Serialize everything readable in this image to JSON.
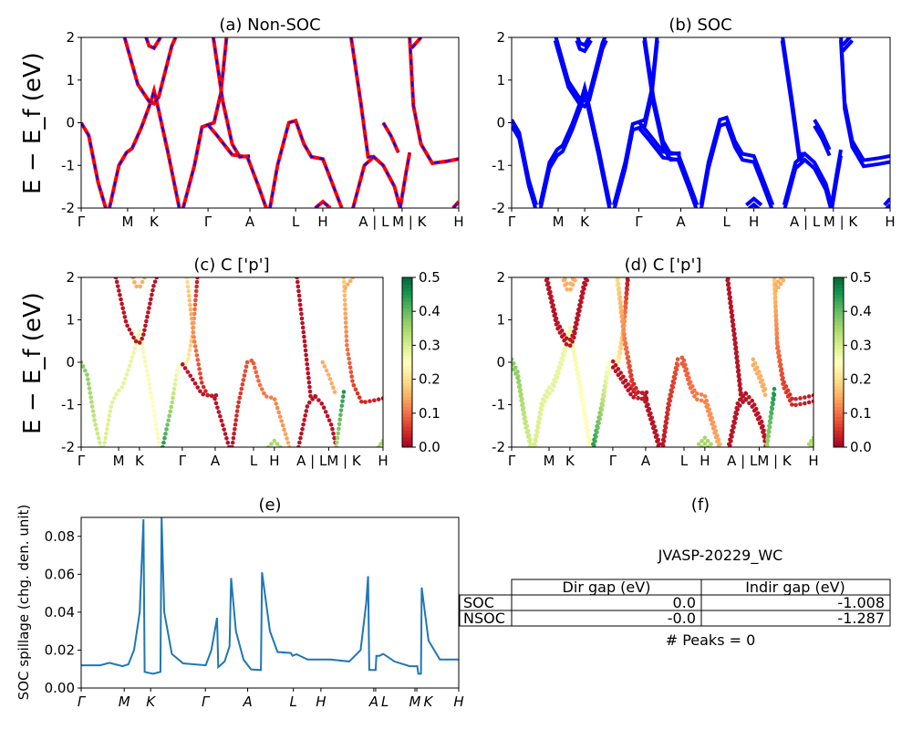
{
  "chart_data": [
    {
      "id": "a",
      "type": "line",
      "title": "(a) Non-SOC",
      "ylabel": "E − E_f (eV)",
      "ylim": [
        -2,
        2
      ],
      "yticks": [
        -2,
        -1,
        0,
        1,
        2
      ],
      "style": "red solid with blue dashes",
      "colors": [
        "#ff0000",
        "#0000ff"
      ]
    },
    {
      "id": "b",
      "type": "line",
      "title": "(b) SOC",
      "ylim": [
        -2,
        2
      ],
      "yticks": [
        -2,
        -1,
        0,
        1,
        2
      ],
      "colors": [
        "#0000ff"
      ]
    },
    {
      "id": "c",
      "type": "scatter",
      "title": "(c)  C ['p']",
      "ylabel": "E − E_f (eV)",
      "ylim": [
        -2,
        2
      ],
      "yticks": [
        -2,
        -1,
        0,
        1,
        2
      ],
      "colorbar": {
        "colormap": "RdYlGn",
        "range": [
          0,
          0.5
        ],
        "ticks": [
          "0.0",
          "0.1",
          "0.2",
          "0.3",
          "0.4",
          "0.5"
        ]
      }
    },
    {
      "id": "d",
      "type": "scatter",
      "title": "(d) C ['p']",
      "ylim": [
        -2,
        2
      ],
      "yticks": [
        -2,
        -1,
        0,
        1,
        2
      ],
      "colorbar": {
        "colormap": "RdYlGn",
        "range": [
          0,
          0.5
        ],
        "ticks": [
          "0.0",
          "0.1",
          "0.2",
          "0.3",
          "0.4",
          "0.5"
        ]
      }
    },
    {
      "id": "e",
      "type": "line",
      "title": "(e)",
      "ylabel": "SOC spillage (chg. den. unit)",
      "ylim": [
        0,
        0.09
      ],
      "yticks": [
        "0.00",
        "0.02",
        "0.04",
        "0.06",
        "0.08"
      ],
      "color": "#1f77b4",
      "xticks": [
        {
          "label": "Γ",
          "k": 0
        },
        {
          "label": "M",
          "k": 0.114
        },
        {
          "label": "K",
          "k": 0.184
        },
        {
          "label": "Γ",
          "k": 0.329
        },
        {
          "label": "A",
          "k": 0.441
        },
        {
          "label": "L",
          "k": 0.562
        },
        {
          "label": "H",
          "k": 0.635
        },
        {
          "label": "A",
          "k": 0.775
        },
        {
          "label": "L",
          "k": 0.78
        },
        {
          "label": "M",
          "k": 0.884
        },
        {
          "label": "K",
          "k": 0.889
        },
        {
          "label": "H",
          "k": 1
        }
      ],
      "points": [
        [
          0,
          0.012
        ],
        [
          0.05,
          0.012
        ],
        [
          0.075,
          0.0133
        ],
        [
          0.11,
          0.0115
        ],
        [
          0.125,
          0.0125
        ],
        [
          0.14,
          0.02
        ],
        [
          0.155,
          0.04
        ],
        [
          0.165,
          0.089
        ],
        [
          0.168,
          0.0085
        ],
        [
          0.19,
          0.0075
        ],
        [
          0.21,
          0.0085
        ],
        [
          0.213,
          0.09
        ],
        [
          0.22,
          0.04
        ],
        [
          0.24,
          0.018
        ],
        [
          0.27,
          0.013
        ],
        [
          0.33,
          0.012
        ],
        [
          0.345,
          0.02
        ],
        [
          0.36,
          0.037
        ],
        [
          0.363,
          0.011
        ],
        [
          0.38,
          0.014
        ],
        [
          0.393,
          0.022
        ],
        [
          0.397,
          0.058
        ],
        [
          0.41,
          0.03
        ],
        [
          0.43,
          0.015
        ],
        [
          0.45,
          0.0098
        ],
        [
          0.476,
          0.0095
        ],
        [
          0.479,
          0.061
        ],
        [
          0.5,
          0.03
        ],
        [
          0.52,
          0.019
        ],
        [
          0.555,
          0.0185
        ],
        [
          0.56,
          0.017
        ],
        [
          0.57,
          0.0178
        ],
        [
          0.6,
          0.015
        ],
        [
          0.66,
          0.015
        ],
        [
          0.71,
          0.014
        ],
        [
          0.74,
          0.02
        ],
        [
          0.755,
          0.045
        ],
        [
          0.76,
          0.059
        ],
        [
          0.763,
          0.0095
        ],
        [
          0.78,
          0.0095
        ],
        [
          0.782,
          0.017
        ],
        [
          0.79,
          0.017
        ],
        [
          0.8,
          0.018
        ],
        [
          0.83,
          0.014
        ],
        [
          0.87,
          0.0115
        ],
        [
          0.89,
          0.0115
        ],
        [
          0.893,
          0.0075
        ],
        [
          0.9,
          0.0075
        ],
        [
          0.902,
          0.053
        ],
        [
          0.92,
          0.025
        ],
        [
          0.95,
          0.015
        ],
        [
          1,
          0.015
        ]
      ]
    }
  ],
  "kpath": {
    "ab_ticks": [
      {
        "label": "Γ",
        "k": 0
      },
      {
        "label": "M",
        "k": 0.123
      },
      {
        "label": "K",
        "k": 0.193
      },
      {
        "label": "Γ",
        "k": 0.336
      },
      {
        "label": "A",
        "k": 0.447
      },
      {
        "label": "L",
        "k": 0.568
      },
      {
        "label": "H",
        "k": 0.64
      },
      {
        "label": "A | L",
        "k": 0.775
      },
      {
        "label": "M | K",
        "k": 0.85
      },
      {
        "label": "H",
        "k": 1
      }
    ],
    "cd_ticks": [
      {
        "label": "Γ",
        "k": 0
      },
      {
        "label": "M",
        "k": 0.124
      },
      {
        "label": "K",
        "k": 0.193
      },
      {
        "label": "Γ",
        "k": 0.335
      },
      {
        "label": "A",
        "k": 0.444
      },
      {
        "label": "L",
        "k": 0.571
      },
      {
        "label": "H",
        "k": 0.64
      },
      {
        "label": "A | LM | K",
        "k": 0.82
      },
      {
        "label": "H",
        "k": 1
      }
    ]
  },
  "bands": [
    {
      "pts": [
        [
          0,
          0
        ],
        [
          0.02,
          -0.3
        ],
        [
          0.045,
          -1.4
        ],
        [
          0.065,
          -2
        ]
      ],
      "w": [
        0.38,
        0.3
      ]
    },
    {
      "pts": [
        [
          0.075,
          -2
        ],
        [
          0.1,
          -1
        ],
        [
          0.12,
          -0.7
        ],
        [
          0.135,
          -0.6
        ],
        [
          0.16,
          -0.1
        ],
        [
          0.185,
          0.5
        ],
        [
          0.193,
          0.75
        ],
        [
          0.2,
          0.5
        ],
        [
          0.23,
          -0.7
        ],
        [
          0.26,
          -2
        ]
      ],
      "w": [
        0.3,
        0.24
      ]
    },
    {
      "pts": [
        [
          0.115,
          2
        ],
        [
          0.15,
          0.9
        ],
        [
          0.18,
          0.5
        ],
        [
          0.193,
          0.45
        ],
        [
          0.205,
          0.6
        ],
        [
          0.24,
          1.8
        ],
        [
          0.25,
          2
        ]
      ],
      "w": [
        0.02,
        0.02
      ]
    },
    {
      "pts": [
        [
          0.172,
          2
        ],
        [
          0.18,
          1.8
        ],
        [
          0.193,
          1.75
        ],
        [
          0.21,
          2
        ]
      ],
      "w": [
        0.15,
        0.15
      ]
    },
    {
      "pts": [
        [
          0.27,
          -2
        ],
        [
          0.3,
          -1
        ],
        [
          0.32,
          -0.1
        ],
        [
          0.336,
          -0.05
        ],
        [
          0.352,
          0
        ],
        [
          0.37,
          0.7
        ],
        [
          0.385,
          2
        ]
      ],
      "w": [
        0.45,
        0.02
      ]
    },
    {
      "pts": [
        [
          0.336,
          -0.05
        ],
        [
          0.36,
          -0.3
        ],
        [
          0.4,
          -0.75
        ],
        [
          0.44,
          -0.8
        ],
        [
          0.47,
          -1.5
        ],
        [
          0.49,
          -2
        ]
      ],
      "w": [
        0.02,
        0.02
      ]
    },
    {
      "pts": [
        [
          0.35,
          2
        ],
        [
          0.375,
          0.5
        ],
        [
          0.4,
          -0.5
        ],
        [
          0.42,
          -0.8
        ],
        [
          0.447,
          -0.78
        ]
      ],
      "w": [
        0.2,
        0.02
      ]
    },
    {
      "pts": [
        [
          0.5,
          -2
        ],
        [
          0.52,
          -1
        ],
        [
          0.55,
          0
        ],
        [
          0.568,
          0.05
        ],
        [
          0.59,
          -0.5
        ],
        [
          0.61,
          -0.8
        ],
        [
          0.64,
          -0.85
        ],
        [
          0.66,
          -1.3
        ],
        [
          0.69,
          -2
        ]
      ],
      "w": [
        0.02,
        0.15
      ]
    },
    {
      "pts": [
        [
          0.62,
          -2
        ],
        [
          0.64,
          -1.85
        ],
        [
          0.66,
          -2
        ]
      ],
      "w": [
        0.35,
        0.35
      ]
    },
    {
      "pts": [
        [
          0.715,
          2
        ],
        [
          0.74,
          0.5
        ],
        [
          0.76,
          -0.8
        ],
        [
          0.775,
          -0.8
        ]
      ],
      "w": [
        0.02,
        0.02
      ]
    },
    {
      "pts": [
        [
          0.72,
          -2
        ],
        [
          0.75,
          -1
        ],
        [
          0.775,
          -0.8
        ],
        [
          0.8,
          -1
        ],
        [
          0.83,
          -1.5
        ],
        [
          0.845,
          -2
        ]
      ],
      "w": [
        0.02,
        0.02
      ]
    },
    {
      "pts": [
        [
          0.8,
          0
        ],
        [
          0.82,
          -0.3
        ],
        [
          0.84,
          -0.7
        ]
      ],
      "w": [
        0.15,
        0.15
      ]
    },
    {
      "pts": [
        [
          0.845,
          -2
        ],
        [
          0.86,
          -1.2
        ],
        [
          0.87,
          -0.7
        ]
      ],
      "w": [
        0.35,
        0.45
      ]
    },
    {
      "pts": [
        [
          0.87,
          2
        ],
        [
          0.88,
          0.4
        ],
        [
          0.9,
          -0.5
        ],
        [
          0.93,
          -0.95
        ],
        [
          0.97,
          -0.9
        ],
        [
          1,
          -0.85
        ]
      ],
      "w": [
        0.18,
        0.02
      ]
    },
    {
      "pts": [
        [
          0.875,
          1.75
        ],
        [
          0.9,
          2
        ]
      ],
      "w": [
        0.15,
        0.15
      ]
    },
    {
      "pts": [
        [
          0.985,
          -2
        ],
        [
          1,
          -1.85
        ]
      ],
      "w": [
        0.35,
        0.35
      ]
    }
  ],
  "table": {
    "title": "(f)",
    "material": "JVASP-20229_WC",
    "columns": [
      "Dir gap (eV)",
      "Indir gap (eV)"
    ],
    "rows": [
      {
        "label": "SOC",
        "dir": "0.0",
        "indir": "-1.008"
      },
      {
        "label": "NSOC",
        "dir": "-0.0",
        "indir": "-1.287"
      }
    ],
    "peaks": "# Peaks = 0"
  }
}
